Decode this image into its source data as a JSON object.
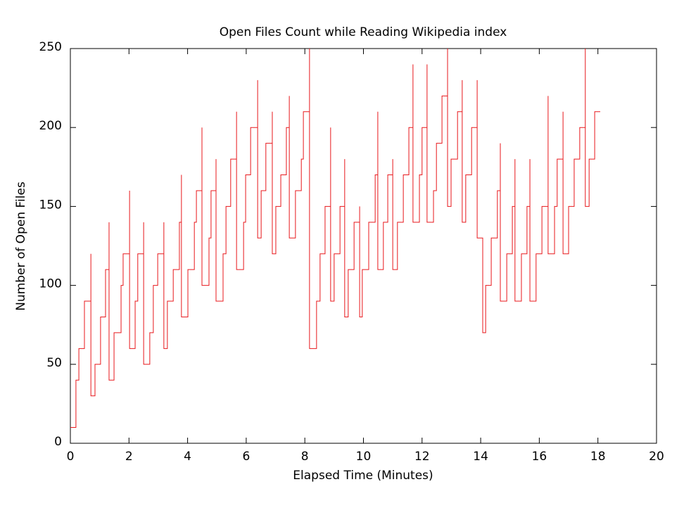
{
  "chart_data": {
    "type": "line",
    "title": "Open Files Count while Reading Wikipedia index",
    "xlabel": "Elapsed Time (Minutes)",
    "ylabel": "Number of Open Files",
    "xlim": [
      0,
      20
    ],
    "xticks": [
      0,
      2,
      4,
      6,
      8,
      10,
      12,
      14,
      16,
      18,
      20
    ],
    "ylim": [
      0,
      250
    ],
    "yticks": [
      0,
      50,
      100,
      150,
      200,
      250
    ],
    "grid": false,
    "color": "#e8181c",
    "x": [
      0,
      0.19,
      0.19,
      0.29,
      0.29,
      0.48,
      0.48,
      0.7,
      0.7,
      0.7,
      0.84,
      0.84,
      1.03,
      1.03,
      1.2,
      1.2,
      1.32,
      1.32,
      1.32,
      1.49,
      1.49,
      1.73,
      1.73,
      1.8,
      1.8,
      2.02,
      2.02,
      2.02,
      2.21,
      2.21,
      2.3,
      2.3,
      2.5,
      2.5,
      2.5,
      2.71,
      2.71,
      2.83,
      2.83,
      2.98,
      2.98,
      3.19,
      3.19,
      3.19,
      3.31,
      3.31,
      3.51,
      3.51,
      3.72,
      3.72,
      3.79,
      3.79,
      3.79,
      4.01,
      4.01,
      4.23,
      4.23,
      4.3,
      4.3,
      4.49,
      4.49,
      4.49,
      4.73,
      4.73,
      4.8,
      4.8,
      4.97,
      4.97,
      4.97,
      5.21,
      5.21,
      5.31,
      5.31,
      5.47,
      5.47,
      5.67,
      5.67,
      5.67,
      5.91,
      5.91,
      5.98,
      5.98,
      6.15,
      6.15,
      6.39,
      6.39,
      6.39,
      6.51,
      6.51,
      6.67,
      6.67,
      6.89,
      6.89,
      6.89,
      7.01,
      7.01,
      7.18,
      7.18,
      7.37,
      7.37,
      7.47,
      7.47,
      7.47,
      7.68,
      7.68,
      7.88,
      7.88,
      7.95,
      7.95,
      8.16,
      8.16,
      8.16,
      8.4,
      8.4,
      8.52,
      8.52,
      8.69,
      8.69,
      8.88,
      8.88,
      8.88,
      9.0,
      9.0,
      9.2,
      9.2,
      9.36,
      9.36,
      9.36,
      9.48,
      9.48,
      9.68,
      9.68,
      9.87,
      9.87,
      9.87,
      9.96,
      9.96,
      10.18,
      10.18,
      10.4,
      10.4,
      10.49,
      10.49,
      10.49,
      10.68,
      10.68,
      10.83,
      10.83,
      11.0,
      11.0,
      11.0,
      11.16,
      11.16,
      11.36,
      11.36,
      11.55,
      11.55,
      11.69,
      11.69,
      11.69,
      11.91,
      11.91,
      12.0,
      12.0,
      12.17,
      12.17,
      12.17,
      12.39,
      12.39,
      12.49,
      12.49,
      12.68,
      12.68,
      12.87,
      12.87,
      12.87,
      12.99,
      12.99,
      13.21,
      13.21,
      13.37,
      13.37,
      13.37,
      13.49,
      13.49,
      13.69,
      13.69,
      13.88,
      13.88,
      13.88,
      14.07,
      14.07,
      14.17,
      14.17,
      14.36,
      14.36,
      14.57,
      14.57,
      14.67,
      14.67,
      14.67,
      14.89,
      14.89,
      15.08,
      15.08,
      15.17,
      15.17,
      15.17,
      15.39,
      15.39,
      15.58,
      15.58,
      15.68,
      15.68,
      15.68,
      15.89,
      15.89,
      16.09,
      16.09,
      16.3,
      16.3,
      16.3,
      16.52,
      16.52,
      16.61,
      16.61,
      16.81,
      16.81,
      16.81,
      17.0,
      17.0,
      17.19,
      17.19,
      17.38,
      17.38,
      17.57,
      17.57,
      17.57,
      17.7,
      17.7,
      17.89,
      17.89,
      18.08
    ],
    "values": [
      10,
      10,
      40,
      40,
      60,
      60,
      90,
      90,
      120,
      30,
      30,
      50,
      50,
      80,
      80,
      110,
      110,
      140,
      40,
      40,
      70,
      70,
      100,
      100,
      120,
      120,
      160,
      60,
      60,
      90,
      90,
      120,
      120,
      140,
      50,
      50,
      70,
      70,
      100,
      100,
      120,
      120,
      140,
      60,
      60,
      90,
      90,
      110,
      110,
      140,
      140,
      170,
      80,
      80,
      110,
      110,
      140,
      140,
      160,
      160,
      200,
      100,
      100,
      130,
      130,
      160,
      160,
      180,
      90,
      90,
      120,
      120,
      150,
      150,
      180,
      180,
      210,
      110,
      110,
      140,
      140,
      170,
      170,
      200,
      200,
      230,
      130,
      130,
      160,
      160,
      190,
      190,
      210,
      120,
      120,
      150,
      150,
      170,
      170,
      200,
      200,
      220,
      130,
      130,
      160,
      160,
      180,
      180,
      210,
      210,
      250,
      60,
      60,
      90,
      90,
      120,
      120,
      150,
      150,
      200,
      90,
      90,
      120,
      120,
      150,
      150,
      180,
      80,
      80,
      110,
      110,
      140,
      140,
      150,
      80,
      80,
      110,
      110,
      140,
      140,
      170,
      170,
      210,
      110,
      110,
      140,
      140,
      170,
      170,
      180,
      110,
      110,
      140,
      140,
      170,
      170,
      200,
      200,
      240,
      140,
      140,
      170,
      170,
      200,
      200,
      240,
      140,
      140,
      160,
      160,
      190,
      190,
      220,
      220,
      250,
      150,
      150,
      180,
      180,
      210,
      210,
      230,
      140,
      140,
      170,
      170,
      200,
      200,
      230,
      130,
      130,
      70,
      70,
      100,
      100,
      130,
      130,
      160,
      160,
      190,
      90,
      90,
      120,
      120,
      150,
      150,
      180,
      90,
      90,
      120,
      120,
      150,
      150,
      180,
      90,
      90,
      120,
      120,
      150,
      150,
      220,
      120,
      120,
      150,
      150,
      180,
      180,
      210,
      120,
      120,
      150,
      150,
      180,
      180,
      200,
      200,
      250,
      150,
      150,
      180,
      180,
      210,
      210
    ]
  }
}
